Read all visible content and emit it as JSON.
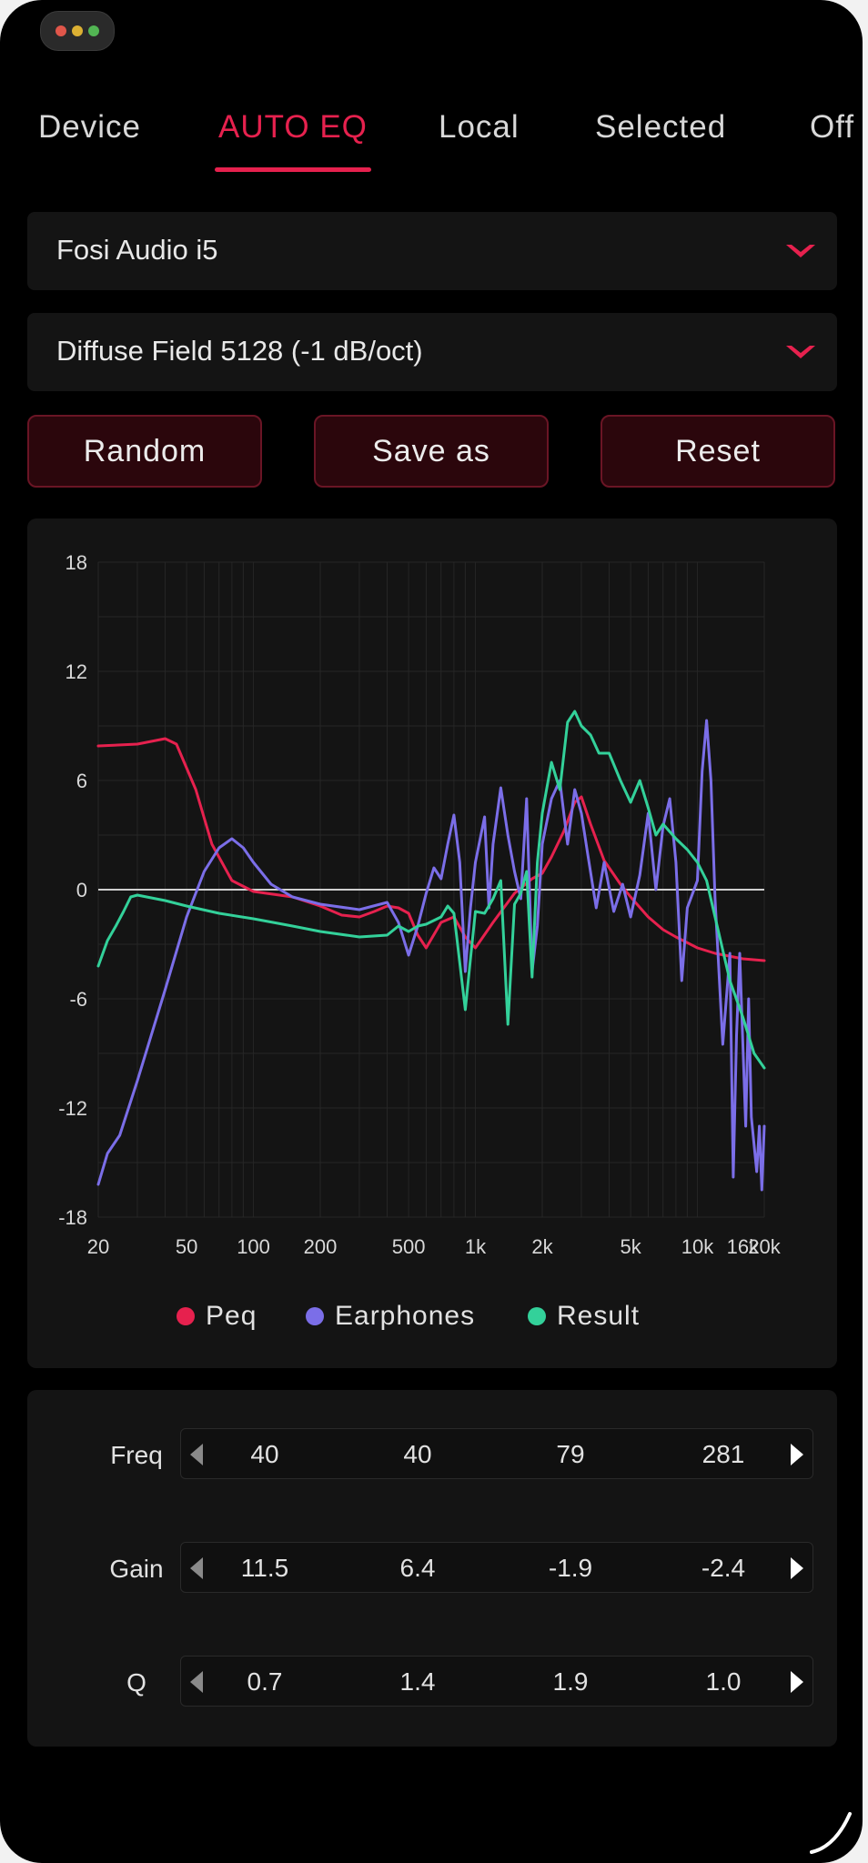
{
  "window": {
    "traffic_colors": [
      "#e0564a",
      "#dcb033",
      "#52b553"
    ]
  },
  "tabs": [
    {
      "label": "Device"
    },
    {
      "label": "AUTO EQ"
    },
    {
      "label": "Local"
    },
    {
      "label": "Selected"
    },
    {
      "label": "Off"
    }
  ],
  "active_tab": "AUTO EQ",
  "device_select": {
    "value": "Fosi Audio i5"
  },
  "target_select": {
    "value": "Diffuse Field 5128 (-1 dB/oct)"
  },
  "buttons": {
    "random": "Random",
    "save_as": "Save as",
    "reset": "Reset"
  },
  "colors": {
    "accent": "#e6214e",
    "peq": "#e6214e",
    "earphones": "#7b6ee8",
    "result": "#33d19a"
  },
  "chart_data": {
    "type": "line",
    "x_scale": "log",
    "xlim": [
      20,
      20000
    ],
    "ylim": [
      -18,
      18
    ],
    "grid": true,
    "legend_position": "bottom",
    "x_ticks": [
      {
        "v": 20,
        "label": "20"
      },
      {
        "v": 50,
        "label": "50"
      },
      {
        "v": 100,
        "label": "100"
      },
      {
        "v": 200,
        "label": "200"
      },
      {
        "v": 500,
        "label": "500"
      },
      {
        "v": 1000,
        "label": "1k"
      },
      {
        "v": 2000,
        "label": "2k"
      },
      {
        "v": 5000,
        "label": "5k"
      },
      {
        "v": 10000,
        "label": "10k"
      },
      {
        "v": 16000,
        "label": "16k"
      },
      {
        "v": 20000,
        "label": "20k"
      }
    ],
    "y_ticks": [
      18,
      12,
      6,
      0,
      -6,
      -12,
      -18
    ],
    "series": [
      {
        "name": "Peq",
        "color": "#e6214e",
        "points": [
          [
            20,
            7.9
          ],
          [
            30,
            8.0
          ],
          [
            40,
            8.3
          ],
          [
            45,
            8.0
          ],
          [
            55,
            5.5
          ],
          [
            65,
            2.5
          ],
          [
            80,
            0.5
          ],
          [
            100,
            -0.1
          ],
          [
            150,
            -0.4
          ],
          [
            200,
            -0.9
          ],
          [
            250,
            -1.4
          ],
          [
            300,
            -1.5
          ],
          [
            350,
            -1.2
          ],
          [
            400,
            -0.9
          ],
          [
            450,
            -1.0
          ],
          [
            500,
            -1.3
          ],
          [
            550,
            -2.5
          ],
          [
            600,
            -3.2
          ],
          [
            700,
            -1.8
          ],
          [
            800,
            -1.5
          ],
          [
            900,
            -2.6
          ],
          [
            1000,
            -3.2
          ],
          [
            1200,
            -1.8
          ],
          [
            1500,
            -0.2
          ],
          [
            1800,
            0.6
          ],
          [
            2000,
            0.9
          ],
          [
            2200,
            1.8
          ],
          [
            2500,
            3.2
          ],
          [
            2800,
            4.8
          ],
          [
            3000,
            5.1
          ],
          [
            3300,
            3.6
          ],
          [
            3800,
            1.6
          ],
          [
            4500,
            0.3
          ],
          [
            5000,
            -0.4
          ],
          [
            6000,
            -1.5
          ],
          [
            7000,
            -2.2
          ],
          [
            8000,
            -2.6
          ],
          [
            10000,
            -3.2
          ],
          [
            12000,
            -3.5
          ],
          [
            16000,
            -3.8
          ],
          [
            20000,
            -3.9
          ]
        ]
      },
      {
        "name": "Earphones",
        "color": "#7b6ee8",
        "points": [
          [
            20,
            -16.2
          ],
          [
            22,
            -14.5
          ],
          [
            25,
            -13.5
          ],
          [
            30,
            -10.5
          ],
          [
            40,
            -5.5
          ],
          [
            50,
            -1.5
          ],
          [
            60,
            1.0
          ],
          [
            70,
            2.3
          ],
          [
            80,
            2.8
          ],
          [
            90,
            2.3
          ],
          [
            100,
            1.5
          ],
          [
            120,
            0.3
          ],
          [
            150,
            -0.4
          ],
          [
            200,
            -0.8
          ],
          [
            300,
            -1.1
          ],
          [
            400,
            -0.7
          ],
          [
            450,
            -1.8
          ],
          [
            500,
            -3.6
          ],
          [
            550,
            -2.0
          ],
          [
            600,
            -0.2
          ],
          [
            650,
            1.2
          ],
          [
            700,
            0.6
          ],
          [
            750,
            2.5
          ],
          [
            800,
            4.1
          ],
          [
            850,
            1.5
          ],
          [
            900,
            -4.5
          ],
          [
            950,
            -1.0
          ],
          [
            1000,
            1.5
          ],
          [
            1100,
            4.0
          ],
          [
            1150,
            -1.0
          ],
          [
            1200,
            2.5
          ],
          [
            1300,
            5.6
          ],
          [
            1400,
            3.0
          ],
          [
            1500,
            1.0
          ],
          [
            1600,
            -0.5
          ],
          [
            1700,
            5.0
          ],
          [
            1800,
            -4.5
          ],
          [
            1900,
            -2.0
          ],
          [
            2000,
            2.5
          ],
          [
            2200,
            5.0
          ],
          [
            2400,
            6.0
          ],
          [
            2600,
            2.5
          ],
          [
            2800,
            5.5
          ],
          [
            3000,
            4.2
          ],
          [
            3200,
            2.0
          ],
          [
            3500,
            -1.0
          ],
          [
            3800,
            1.5
          ],
          [
            4200,
            -1.2
          ],
          [
            4600,
            0.3
          ],
          [
            5000,
            -1.5
          ],
          [
            5500,
            0.8
          ],
          [
            6000,
            4.2
          ],
          [
            6500,
            0.0
          ],
          [
            7000,
            3.5
          ],
          [
            7500,
            5.0
          ],
          [
            8000,
            1.5
          ],
          [
            8500,
            -5.0
          ],
          [
            9000,
            -1.0
          ],
          [
            10000,
            0.5
          ],
          [
            10500,
            6.5
          ],
          [
            11000,
            9.3
          ],
          [
            11500,
            6.0
          ],
          [
            12000,
            -0.5
          ],
          [
            13000,
            -8.5
          ],
          [
            14000,
            -3.5
          ],
          [
            14500,
            -15.8
          ],
          [
            15000,
            -8.0
          ],
          [
            15500,
            -3.5
          ],
          [
            16500,
            -13.0
          ],
          [
            17000,
            -6.0
          ],
          [
            17500,
            -12.5
          ],
          [
            18500,
            -15.5
          ],
          [
            19000,
            -13.0
          ],
          [
            19500,
            -16.5
          ],
          [
            20000,
            -13.0
          ]
        ]
      },
      {
        "name": "Result",
        "color": "#33d19a",
        "points": [
          [
            20,
            -4.2
          ],
          [
            22,
            -2.8
          ],
          [
            24,
            -2.0
          ],
          [
            26,
            -1.2
          ],
          [
            28,
            -0.4
          ],
          [
            30,
            -0.3
          ],
          [
            40,
            -0.6
          ],
          [
            50,
            -0.9
          ],
          [
            70,
            -1.3
          ],
          [
            100,
            -1.6
          ],
          [
            150,
            -2.0
          ],
          [
            200,
            -2.3
          ],
          [
            300,
            -2.6
          ],
          [
            400,
            -2.5
          ],
          [
            450,
            -2.0
          ],
          [
            500,
            -2.3
          ],
          [
            550,
            -2.0
          ],
          [
            600,
            -1.9
          ],
          [
            700,
            -1.5
          ],
          [
            750,
            -0.9
          ],
          [
            800,
            -1.3
          ],
          [
            900,
            -6.6
          ],
          [
            950,
            -3.8
          ],
          [
            1000,
            -1.2
          ],
          [
            1100,
            -1.3
          ],
          [
            1200,
            -0.5
          ],
          [
            1300,
            0.5
          ],
          [
            1400,
            -7.4
          ],
          [
            1500,
            -0.8
          ],
          [
            1600,
            -0.2
          ],
          [
            1700,
            1.0
          ],
          [
            1800,
            -4.8
          ],
          [
            1900,
            1.5
          ],
          [
            2000,
            4.2
          ],
          [
            2200,
            7.0
          ],
          [
            2400,
            5.5
          ],
          [
            2600,
            9.2
          ],
          [
            2800,
            9.8
          ],
          [
            3000,
            9.0
          ],
          [
            3300,
            8.5
          ],
          [
            3600,
            7.5
          ],
          [
            4000,
            7.5
          ],
          [
            4500,
            6.0
          ],
          [
            5000,
            4.8
          ],
          [
            5500,
            6.0
          ],
          [
            6000,
            4.5
          ],
          [
            6500,
            3.0
          ],
          [
            7000,
            3.6
          ],
          [
            8000,
            2.8
          ],
          [
            9000,
            2.2
          ],
          [
            10000,
            1.5
          ],
          [
            11000,
            0.5
          ],
          [
            12000,
            -1.5
          ],
          [
            14000,
            -5.0
          ],
          [
            16000,
            -7.0
          ],
          [
            18000,
            -9.0
          ],
          [
            20000,
            -9.8
          ]
        ]
      }
    ]
  },
  "legend": [
    {
      "label": "Peq"
    },
    {
      "label": "Earphones"
    },
    {
      "label": "Result"
    }
  ],
  "params": {
    "freq": {
      "label": "Freq",
      "values": [
        "40",
        "40",
        "79",
        "281"
      ]
    },
    "gain": {
      "label": "Gain",
      "values": [
        "11.5",
        "6.4",
        "-1.9",
        "-2.4"
      ]
    },
    "q": {
      "label": "Q",
      "values": [
        "0.7",
        "1.4",
        "1.9",
        "1.0"
      ]
    }
  }
}
